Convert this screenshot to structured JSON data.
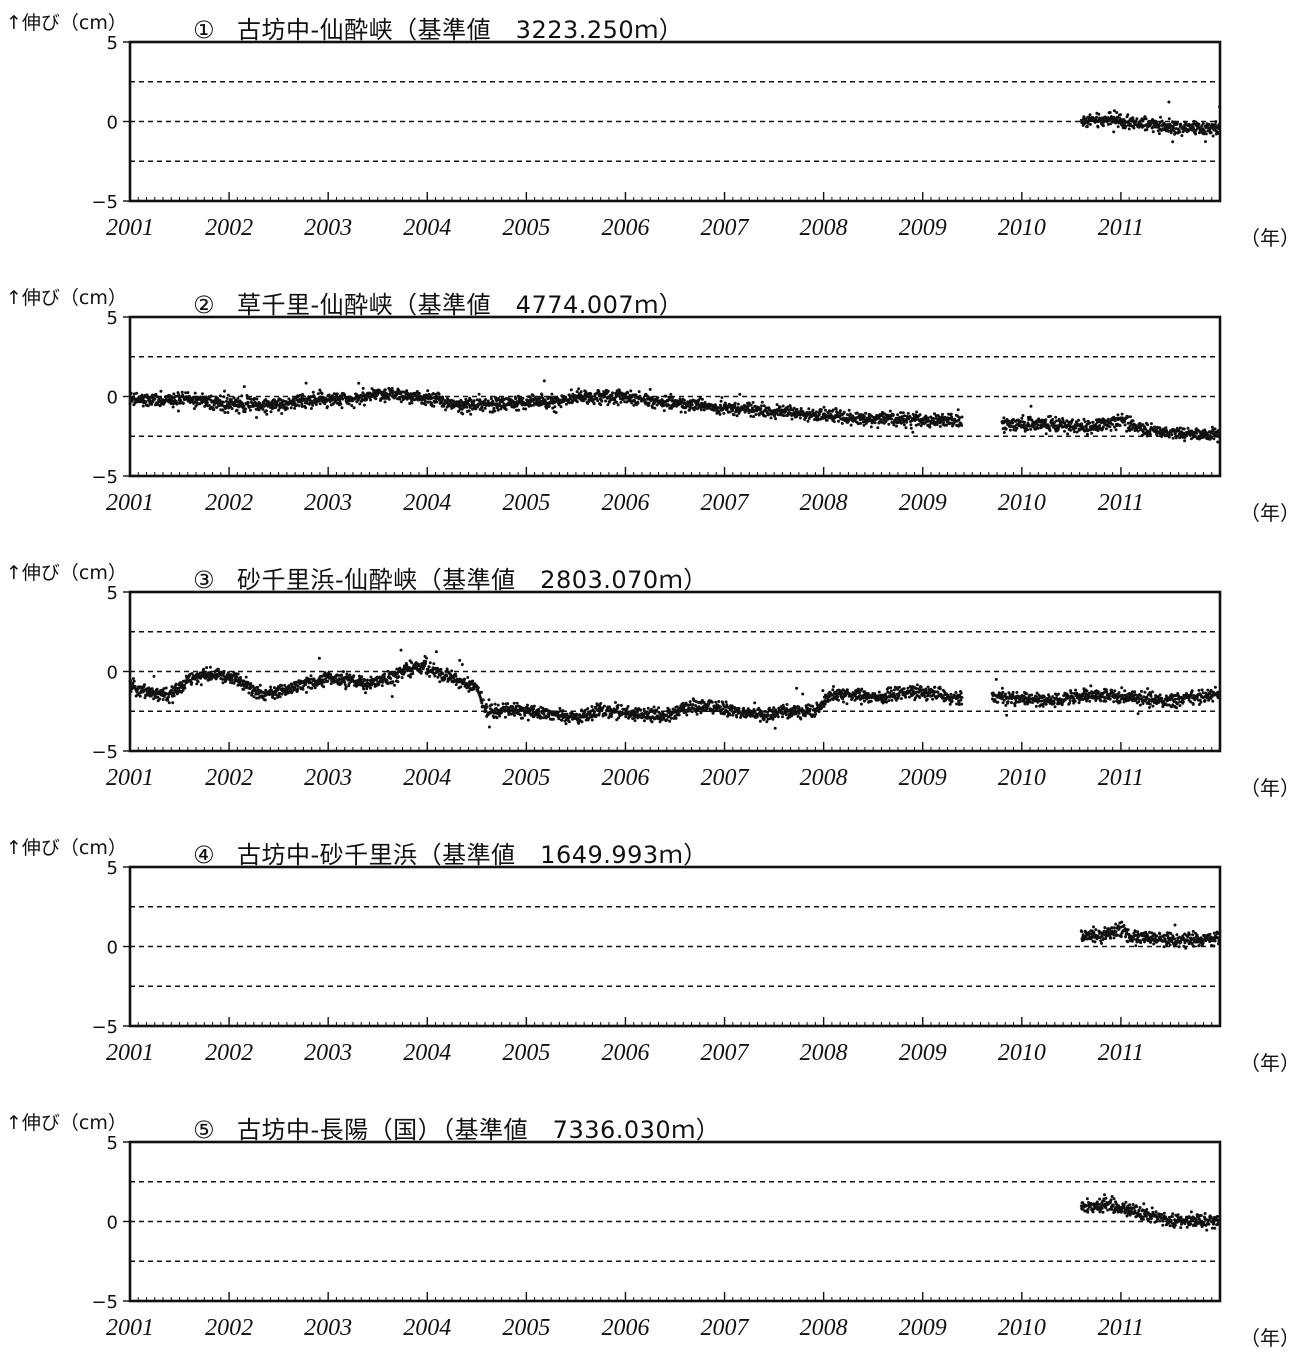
{
  "chart_data": [
    {
      "type": "scatter",
      "ylabel": "↑伸び（cm）",
      "title_marker": "①",
      "title": "古坊中‐仙酔峡（基準値　3223.250ｍ）",
      "xunit": "（年）",
      "x_ticks": [
        "2001",
        "2002",
        "2003",
        "2004",
        "2005",
        "2006",
        "2007",
        "2008",
        "2009",
        "2010",
        "2011"
      ],
      "y_ticks": [
        "5",
        "0",
        "−5"
      ],
      "xlim": [
        2001,
        2012
      ],
      "ylim": [
        -5,
        5
      ],
      "reference_lines": [
        2.5,
        0,
        -2.5
      ],
      "series": [
        {
          "points": [
            [
              2010.6,
              0.0
            ],
            [
              2010.7,
              0.1
            ],
            [
              2010.8,
              0.0
            ],
            [
              2010.9,
              0.3
            ],
            [
              2011.0,
              -0.1
            ],
            [
              2011.1,
              -0.1
            ],
            [
              2011.2,
              -0.2
            ],
            [
              2011.3,
              -0.2
            ],
            [
              2011.4,
              -0.3
            ],
            [
              2011.5,
              -0.3
            ],
            [
              2011.6,
              -0.4
            ],
            [
              2011.7,
              -0.3
            ],
            [
              2011.8,
              -0.4
            ],
            [
              2011.9,
              -0.4
            ],
            [
              2012.0,
              -0.4
            ]
          ]
        }
      ]
    },
    {
      "type": "scatter",
      "ylabel": "↑伸び（cm）",
      "title_marker": "②",
      "title": "草千里‐仙酔峡（基準値　4774.007ｍ）",
      "xunit": "（年）",
      "x_ticks": [
        "2001",
        "2002",
        "2003",
        "2004",
        "2005",
        "2006",
        "2007",
        "2008",
        "2009",
        "2010",
        "2011"
      ],
      "y_ticks": [
        "5",
        "0",
        "−5"
      ],
      "xlim": [
        2001,
        2012
      ],
      "ylim": [
        -5,
        5
      ],
      "reference_lines": [
        2.5,
        0,
        -2.5
      ],
      "series": [
        {
          "points": [
            [
              2001.0,
              -0.2
            ],
            [
              2001.3,
              -0.3
            ],
            [
              2001.6,
              -0.1
            ],
            [
              2001.9,
              -0.5
            ],
            [
              2002.1,
              -0.5
            ],
            [
              2002.4,
              -0.6
            ],
            [
              2002.7,
              -0.3
            ],
            [
              2003.0,
              -0.2
            ],
            [
              2003.3,
              -0.1
            ],
            [
              2003.5,
              0.2
            ],
            [
              2003.8,
              0.1
            ],
            [
              2004.0,
              -0.1
            ],
            [
              2004.3,
              -0.5
            ],
            [
              2004.6,
              -0.5
            ],
            [
              2004.9,
              -0.4
            ],
            [
              2005.2,
              -0.3
            ],
            [
              2005.5,
              -0.1
            ],
            [
              2005.8,
              0.0
            ],
            [
              2006.0,
              -0.1
            ],
            [
              2006.3,
              -0.3
            ],
            [
              2006.6,
              -0.5
            ],
            [
              2006.9,
              -0.7
            ],
            [
              2007.2,
              -0.8
            ],
            [
              2007.5,
              -1.0
            ],
            [
              2007.8,
              -1.1
            ],
            [
              2008.1,
              -1.2
            ],
            [
              2008.4,
              -1.5
            ],
            [
              2008.7,
              -1.4
            ],
            [
              2009.0,
              -1.5
            ],
            [
              2009.4,
              -1.6
            ],
            [
              2009.6,
              null
            ],
            [
              2009.8,
              -1.8
            ],
            [
              2010.1,
              -1.7
            ],
            [
              2010.4,
              -1.8
            ],
            [
              2010.7,
              -1.9
            ],
            [
              2010.9,
              -1.6
            ],
            [
              2011.0,
              -1.5
            ],
            [
              2011.2,
              -2.0
            ],
            [
              2011.5,
              -2.3
            ],
            [
              2011.8,
              -2.4
            ],
            [
              2012.0,
              -2.3
            ]
          ]
        }
      ]
    },
    {
      "type": "scatter",
      "ylabel": "↑伸び（cm）",
      "title_marker": "③",
      "title": "砂千里浜‐仙酔峡（基準値　2803.070ｍ）",
      "xunit": "（年）",
      "x_ticks": [
        "2001",
        "2002",
        "2003",
        "2004",
        "2005",
        "2006",
        "2007",
        "2008",
        "2009",
        "2010",
        "2011"
      ],
      "y_ticks": [
        "5",
        "0",
        "−5"
      ],
      "xlim": [
        2001,
        2012
      ],
      "ylim": [
        -5,
        5
      ],
      "reference_lines": [
        2.5,
        0,
        -2.5
      ],
      "series": [
        {
          "points": [
            [
              2001.0,
              -0.9
            ],
            [
              2001.2,
              -1.3
            ],
            [
              2001.4,
              -1.5
            ],
            [
              2001.6,
              -0.5
            ],
            [
              2001.8,
              -0.2
            ],
            [
              2002.0,
              -0.3
            ],
            [
              2002.1,
              -0.6
            ],
            [
              2002.3,
              -1.4
            ],
            [
              2002.5,
              -1.3
            ],
            [
              2002.8,
              -0.7
            ],
            [
              2003.0,
              -0.4
            ],
            [
              2003.2,
              -0.6
            ],
            [
              2003.4,
              -0.8
            ],
            [
              2003.6,
              -0.5
            ],
            [
              2003.8,
              0.2
            ],
            [
              2004.0,
              0.2
            ],
            [
              2004.2,
              -0.3
            ],
            [
              2004.4,
              -0.8
            ],
            [
              2004.5,
              -1.0
            ],
            [
              2004.6,
              -2.6
            ],
            [
              2004.8,
              -2.4
            ],
            [
              2005.0,
              -2.5
            ],
            [
              2005.2,
              -2.6
            ],
            [
              2005.4,
              -2.9
            ],
            [
              2005.6,
              -2.8
            ],
            [
              2005.8,
              -2.4
            ],
            [
              2006.0,
              -2.6
            ],
            [
              2006.2,
              -2.7
            ],
            [
              2006.4,
              -2.9
            ],
            [
              2006.6,
              -2.3
            ],
            [
              2006.8,
              -2.2
            ],
            [
              2007.0,
              -2.4
            ],
            [
              2007.2,
              -2.6
            ],
            [
              2007.4,
              -2.8
            ],
            [
              2007.6,
              -2.5
            ],
            [
              2007.9,
              -2.5
            ],
            [
              2008.1,
              -1.4
            ],
            [
              2008.4,
              -1.5
            ],
            [
              2008.6,
              -1.7
            ],
            [
              2008.7,
              -1.4
            ],
            [
              2009.0,
              -1.3
            ],
            [
              2009.3,
              -1.6
            ],
            [
              2009.4,
              -1.7
            ],
            [
              2009.6,
              null
            ],
            [
              2009.7,
              -1.6
            ],
            [
              2010.0,
              -1.7
            ],
            [
              2010.4,
              -1.8
            ],
            [
              2010.6,
              -1.6
            ],
            [
              2010.9,
              -1.5
            ],
            [
              2011.2,
              -1.7
            ],
            [
              2011.5,
              -1.9
            ],
            [
              2011.7,
              -1.6
            ],
            [
              2012.0,
              -1.4
            ]
          ]
        }
      ]
    },
    {
      "type": "scatter",
      "ylabel": "↑伸び（cm）",
      "title_marker": "④",
      "title": "古坊中‐砂千里浜（基準値　1649.993ｍ）",
      "xunit": "（年）",
      "x_ticks": [
        "2001",
        "2002",
        "2003",
        "2004",
        "2005",
        "2006",
        "2007",
        "2008",
        "2009",
        "2010",
        "2011"
      ],
      "y_ticks": [
        "5",
        "0",
        "−5"
      ],
      "xlim": [
        2001,
        2012
      ],
      "ylim": [
        -5,
        5
      ],
      "reference_lines": [
        2.5,
        0,
        -2.5
      ],
      "series": [
        {
          "points": [
            [
              2010.6,
              0.6
            ],
            [
              2010.8,
              0.7
            ],
            [
              2010.9,
              0.9
            ],
            [
              2011.0,
              1.1
            ],
            [
              2011.1,
              0.6
            ],
            [
              2011.3,
              0.5
            ],
            [
              2011.5,
              0.4
            ],
            [
              2011.7,
              0.4
            ],
            [
              2011.9,
              0.5
            ],
            [
              2012.0,
              0.5
            ]
          ]
        }
      ]
    },
    {
      "type": "scatter",
      "ylabel": "↑伸び（cm）",
      "title_marker": "⑤",
      "title": "古坊中‐長陽（国）（基準値　7336.030ｍ）",
      "xunit": "（年）",
      "x_ticks": [
        "2001",
        "2002",
        "2003",
        "2004",
        "2005",
        "2006",
        "2007",
        "2008",
        "2009",
        "2010",
        "2011"
      ],
      "y_ticks": [
        "5",
        "0",
        "−5"
      ],
      "xlim": [
        2001,
        2012
      ],
      "ylim": [
        -5,
        5
      ],
      "reference_lines": [
        2.5,
        0,
        -2.5
      ],
      "series": [
        {
          "points": [
            [
              2010.6,
              0.9
            ],
            [
              2010.8,
              1.0
            ],
            [
              2010.9,
              1.1
            ],
            [
              2011.0,
              0.9
            ],
            [
              2011.2,
              0.6
            ],
            [
              2011.4,
              0.2
            ],
            [
              2011.6,
              0.0
            ],
            [
              2011.8,
              0.1
            ],
            [
              2012.0,
              0.0
            ]
          ]
        }
      ]
    }
  ]
}
